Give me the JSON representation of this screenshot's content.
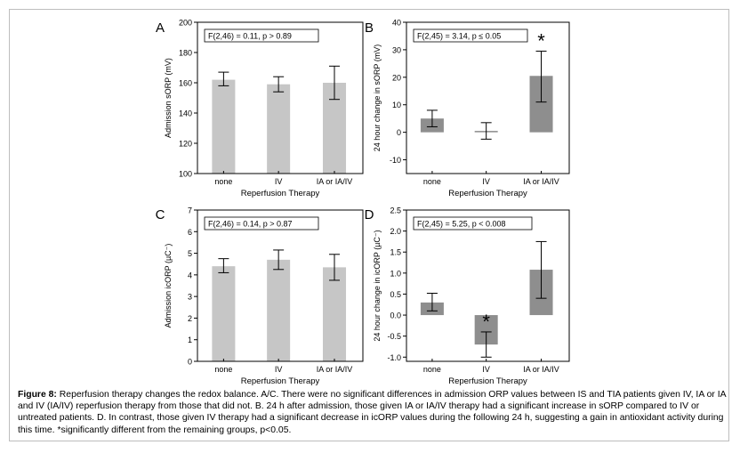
{
  "caption": {
    "label": "Figure 8:",
    "text": "Reperfusion therapy changes the redox balance. A/C. There were no significant differences in admission ORP values between IS and TIA patients given IV, IA or IA and IV (IA/IV) reperfusion therapy from those that did not. B. 24 h after admission, those given IA or IA/IV therapy had a significant increase in sORP compared to IV or untreated patients. D. In contrast, those given IV therapy had a significant decrease in icORP values during the following 24 h, suggesting a gain in antioxidant activity during this time. *significantly different from the remaining groups, p<0.05."
  },
  "colors": {
    "bar_light": "#c6c6c6",
    "bar_dark": "#8e8e8e",
    "axis": "#000000",
    "frame_border": "#bdbdbd"
  },
  "chart_data": [
    {
      "panel": "A",
      "type": "bar",
      "categories": [
        "none",
        "IV",
        "IA or IA/IV"
      ],
      "values": [
        162,
        159,
        160
      ],
      "error_low": [
        158,
        154,
        149
      ],
      "error_high": [
        167,
        164,
        171
      ],
      "xlabel": "Reperfusion Therapy",
      "ylabel": "Admission sORP (mV)",
      "ylim": [
        100,
        200
      ],
      "yticks": [
        "100",
        "120",
        "140",
        "160",
        "180",
        "200"
      ],
      "annotation": "F(2,46) = 0.11, p > 0.89",
      "significant": [],
      "bar_color": "light"
    },
    {
      "panel": "B",
      "type": "bar",
      "categories": [
        "none",
        "IV",
        "IA or IA/IV"
      ],
      "values": [
        5,
        0.5,
        20.5
      ],
      "error_low": [
        2,
        -2.5,
        11
      ],
      "error_high": [
        8,
        3.5,
        29.5
      ],
      "xlabel": "Reperfusion Therapy",
      "ylabel": "24 hour change in sORP (mV)",
      "ylim": [
        -15,
        40
      ],
      "yticks": [
        "-10",
        "0",
        "10",
        "20",
        "30",
        "40"
      ],
      "annotation": "F(2,45) = 3.14, p ≤ 0.05",
      "significant": [
        2
      ],
      "significance_mark": "*",
      "bar_color": "dark"
    },
    {
      "panel": "C",
      "type": "bar",
      "categories": [
        "none",
        "IV",
        "IA or IA/IV"
      ],
      "values": [
        4.4,
        4.7,
        4.35
      ],
      "error_low": [
        4.1,
        4.25,
        3.75
      ],
      "error_high": [
        4.75,
        5.15,
        4.95
      ],
      "xlabel": "Reperfusion Therapy",
      "ylabel": "Admission icORP (µC⁻)",
      "ylim": [
        0,
        7
      ],
      "yticks": [
        "0",
        "1",
        "2",
        "3",
        "4",
        "5",
        "6",
        "7"
      ],
      "annotation": "F(2,46) = 0.14, p > 0.87",
      "significant": [],
      "bar_color": "light"
    },
    {
      "panel": "D",
      "type": "bar",
      "categories": [
        "none",
        "IV",
        "IA or IA/IV"
      ],
      "values": [
        0.3,
        -0.7,
        1.08
      ],
      "error_low": [
        0.1,
        -1.0,
        0.4
      ],
      "error_high": [
        0.52,
        -0.4,
        1.75
      ],
      "xlabel": "Reperfusion Therapy",
      "ylabel": "24 hour change in icORP (µC⁻)",
      "ylim": [
        -1.1,
        2.5
      ],
      "yticks": [
        "-1.0",
        "-0.5",
        "0.0",
        "0.5",
        "1.0",
        "1.5",
        "2.0",
        "2.5"
      ],
      "annotation": "F(2,45) = 5.25, p < 0.008",
      "significant": [
        1
      ],
      "significance_mark": "*",
      "bar_color": "dark"
    }
  ]
}
